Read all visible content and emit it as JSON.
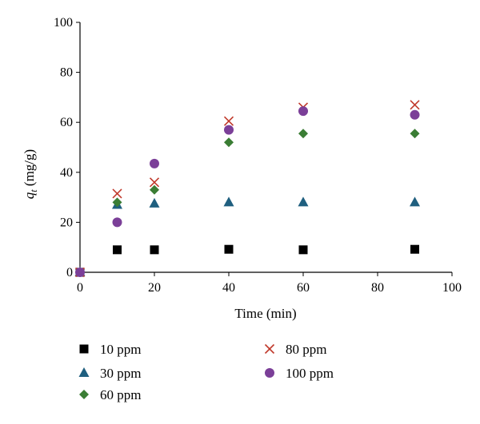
{
  "chart_data": {
    "type": "scatter",
    "xlabel": "Time (min)",
    "ylabel_main": "q",
    "ylabel_sub": "t",
    "ylabel_unit": " (mg/g)",
    "xlim": [
      0,
      100
    ],
    "ylim": [
      0,
      100
    ],
    "x_ticks": [
      "0",
      "20",
      "40",
      "60",
      "80",
      "100"
    ],
    "y_ticks": [
      "0",
      "20",
      "40",
      "60",
      "80",
      "100"
    ],
    "grid": false,
    "legend_position": "bottom",
    "series": [
      {
        "name": "10 ppm",
        "marker": "square",
        "color": "#000000",
        "points": [
          [
            0,
            0
          ],
          [
            10,
            9
          ],
          [
            20,
            9
          ],
          [
            40,
            9.2
          ],
          [
            60,
            9
          ],
          [
            90,
            9.2
          ]
        ]
      },
      {
        "name": "30 ppm",
        "marker": "triangle",
        "color": "#1f5f7f",
        "points": [
          [
            0,
            0
          ],
          [
            10,
            27
          ],
          [
            20,
            27.5
          ],
          [
            40,
            28
          ],
          [
            60,
            28
          ],
          [
            90,
            28
          ]
        ]
      },
      {
        "name": "60 ppm",
        "marker": "diamond",
        "color": "#3a7d34",
        "points": [
          [
            0,
            0
          ],
          [
            10,
            28
          ],
          [
            20,
            33
          ],
          [
            40,
            52
          ],
          [
            60,
            55.5
          ],
          [
            90,
            55.5
          ]
        ]
      },
      {
        "name": "80 ppm",
        "marker": "cross",
        "color": "#c0392b",
        "points": [
          [
            0,
            0
          ],
          [
            10,
            31.5
          ],
          [
            20,
            36
          ],
          [
            40,
            60.5
          ],
          [
            60,
            66
          ],
          [
            90,
            67
          ]
        ]
      },
      {
        "name": "100 ppm",
        "marker": "circle",
        "color": "#7b3f98",
        "points": [
          [
            0,
            0
          ],
          [
            10,
            20
          ],
          [
            20,
            43.5
          ],
          [
            40,
            57
          ],
          [
            60,
            64.5
          ],
          [
            90,
            63
          ]
        ]
      }
    ]
  }
}
